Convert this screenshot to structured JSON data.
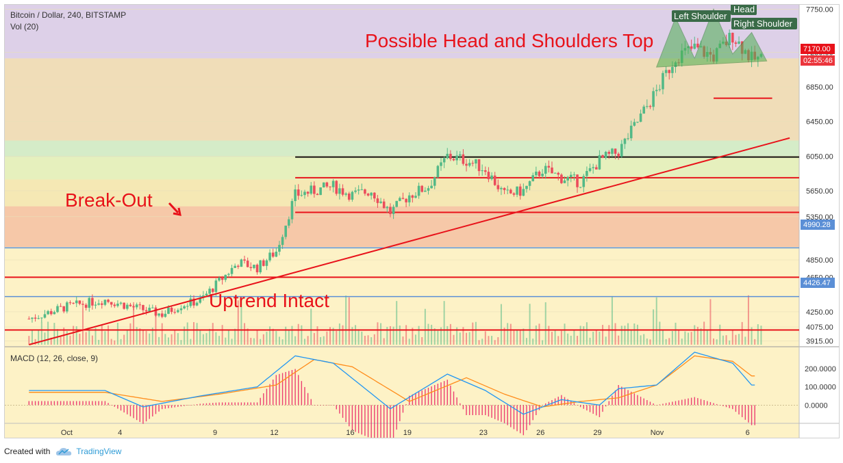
{
  "header": {
    "symbol_line": "Bitcoin / Dollar, 240, BITSTAMP",
    "volume_line": "Vol (20)",
    "macd_line": "MACD (12, 26, close, 9)"
  },
  "footer": {
    "created_with": "Created with",
    "brand": "TradingView",
    "brand_icon": "tradingview-cloud-icon"
  },
  "annotations": {
    "title": "Possible Head and Shoulders Top",
    "breakout": "Break-Out",
    "uptrend": "Uptrend Intact",
    "left_shoulder": "Left Shoulder",
    "head": "Head",
    "right_shoulder": "Right Shoulder"
  },
  "price_tags": {
    "last_price": "7170.00",
    "countdown": "02:55:46",
    "level_upper": "4990.28",
    "level_lower": "4426.47"
  },
  "colors": {
    "up": "#53b987",
    "down": "#eb4d5c",
    "trendline": "#e8121a",
    "resistance_black": "#111111",
    "macd_line": "#2196f3",
    "signal_line": "#ff8c1a",
    "histogram": "#e91e63",
    "pattern_fill": "#4caf50",
    "level_blue": "#5b8fd6"
  },
  "chart_data": {
    "type": "candlestick",
    "symbol": "Bitcoin / Dollar",
    "interval": "240",
    "exchange": "BITSTAMP",
    "price_axis_ticks": [
      "7750.00",
      "7250.00",
      "6850.00",
      "6450.00",
      "6050.00",
      "5650.00",
      "5350.00",
      "4990.28",
      "4850.00",
      "4650.00",
      "4426.47",
      "4250.00",
      "4075.00",
      "3915.00"
    ],
    "price_tick_values": [
      7750,
      7250,
      6850,
      6450,
      6050,
      5650,
      5350,
      4990.28,
      4850,
      4650,
      4426.47,
      4250,
      4075,
      3915
    ],
    "macd_axis_ticks": [
      "200.0000",
      "100.0000",
      "0.0000"
    ],
    "macd_tick_values": [
      200,
      100,
      0
    ],
    "time_axis_ticks": [
      "Oct",
      "4",
      "9",
      "12",
      "16",
      "19",
      "23",
      "26",
      "29",
      "Nov",
      "6"
    ],
    "price_ylim": [
      3870,
      7800
    ],
    "macd_ylim": [
      -100,
      320
    ],
    "last_price": 7170,
    "horizontal_levels": [
      {
        "price": 6040,
        "color": "black"
      },
      {
        "price": 5800,
        "color": "red"
      },
      {
        "price": 5400,
        "color": "red"
      },
      {
        "price": 4990.28,
        "color": "blue"
      },
      {
        "price": 4650,
        "color": "red"
      },
      {
        "price": 4426.47,
        "color": "blue"
      },
      {
        "price": 4040,
        "color": "red"
      },
      {
        "price": 6720,
        "color": "red"
      }
    ],
    "zones": [
      {
        "from": 7180,
        "to": 7800,
        "color": "purple"
      },
      {
        "from": 6230,
        "to": 7180,
        "color": "tan"
      },
      {
        "from": 6040,
        "to": 6230,
        "color": "green"
      },
      {
        "from": 5780,
        "to": 6040,
        "color": "lightgreen"
      },
      {
        "from": 5470,
        "to": 5780,
        "color": "khaki"
      },
      {
        "from": 5000,
        "to": 5470,
        "color": "salmon"
      },
      {
        "from": 3870,
        "to": 5000,
        "color": "cream"
      }
    ],
    "trendline": {
      "start": {
        "date": "2017-09-29",
        "price": 3870
      },
      "end": {
        "date": "2017-11-08",
        "price": 6260
      }
    },
    "close_anchors": [
      {
        "date": "2017-09-29",
        "price": 4170
      },
      {
        "date": "2017-10-01",
        "price": 4310
      },
      {
        "date": "2017-10-03",
        "price": 4390
      },
      {
        "date": "2017-10-04",
        "price": 4330
      },
      {
        "date": "2017-10-06",
        "price": 4220
      },
      {
        "date": "2017-10-07",
        "price": 4330
      },
      {
        "date": "2017-10-08",
        "price": 4380
      },
      {
        "date": "2017-10-09",
        "price": 4600
      },
      {
        "date": "2017-10-10",
        "price": 4820
      },
      {
        "date": "2017-10-11",
        "price": 4760
      },
      {
        "date": "2017-10-12",
        "price": 4950
      },
      {
        "date": "2017-10-13",
        "price": 5600
      },
      {
        "date": "2017-10-14",
        "price": 5650
      },
      {
        "date": "2017-10-15",
        "price": 5700
      },
      {
        "date": "2017-10-16",
        "price": 5600
      },
      {
        "date": "2017-10-17",
        "price": 5650
      },
      {
        "date": "2017-10-18",
        "price": 5400
      },
      {
        "date": "2017-10-19",
        "price": 5600
      },
      {
        "date": "2017-10-20",
        "price": 5700
      },
      {
        "date": "2017-10-21",
        "price": 6050
      },
      {
        "date": "2017-10-22",
        "price": 6000
      },
      {
        "date": "2017-10-23",
        "price": 5900
      },
      {
        "date": "2017-10-24",
        "price": 5600
      },
      {
        "date": "2017-10-25",
        "price": 5650
      },
      {
        "date": "2017-10-26",
        "price": 5900
      },
      {
        "date": "2017-10-27",
        "price": 5800
      },
      {
        "date": "2017-10-28",
        "price": 5750
      },
      {
        "date": "2017-10-29",
        "price": 6000
      },
      {
        "date": "2017-10-30",
        "price": 6100
      },
      {
        "date": "2017-10-31",
        "price": 6450
      },
      {
        "date": "2017-11-01",
        "price": 6800
      },
      {
        "date": "2017-11-02",
        "price": 7200
      },
      {
        "date": "2017-11-03",
        "price": 7300
      },
      {
        "date": "2017-11-04",
        "price": 7200
      },
      {
        "date": "2017-11-05",
        "price": 7450
      },
      {
        "date": "2017-11-06",
        "price": 7170
      }
    ],
    "macd_anchors": [
      {
        "date": "2017-09-29",
        "macd": 80
      },
      {
        "date": "2017-10-03",
        "macd": 80
      },
      {
        "date": "2017-10-05",
        "macd": -10
      },
      {
        "date": "2017-10-08",
        "macd": 50
      },
      {
        "date": "2017-10-11",
        "macd": 100
      },
      {
        "date": "2017-10-13",
        "macd": 270
      },
      {
        "date": "2017-10-15",
        "macd": 230
      },
      {
        "date": "2017-10-18",
        "macd": -20
      },
      {
        "date": "2017-10-21",
        "macd": 170
      },
      {
        "date": "2017-10-23",
        "macd": 80
      },
      {
        "date": "2017-10-25",
        "macd": -50
      },
      {
        "date": "2017-10-27",
        "macd": 30
      },
      {
        "date": "2017-10-29",
        "macd": 0
      },
      {
        "date": "2017-10-30",
        "macd": 90
      },
      {
        "date": "2017-11-01",
        "macd": 110
      },
      {
        "date": "2017-11-03",
        "macd": 290
      },
      {
        "date": "2017-11-05",
        "macd": 230
      },
      {
        "date": "2017-11-06",
        "macd": 110
      }
    ],
    "signal_anchors": [
      {
        "date": "2017-09-29",
        "signal": 70
      },
      {
        "date": "2017-10-03",
        "signal": 70
      },
      {
        "date": "2017-10-06",
        "signal": 20
      },
      {
        "date": "2017-10-09",
        "signal": 60
      },
      {
        "date": "2017-10-12",
        "signal": 110
      },
      {
        "date": "2017-10-14",
        "signal": 250
      },
      {
        "date": "2017-10-16",
        "signal": 210
      },
      {
        "date": "2017-10-19",
        "signal": 20
      },
      {
        "date": "2017-10-22",
        "signal": 150
      },
      {
        "date": "2017-10-24",
        "signal": 60
      },
      {
        "date": "2017-10-26",
        "signal": -10
      },
      {
        "date": "2017-10-28",
        "signal": 20
      },
      {
        "date": "2017-10-30",
        "signal": 40
      },
      {
        "date": "2017-11-01",
        "signal": 110
      },
      {
        "date": "2017-11-03",
        "signal": 270
      },
      {
        "date": "2017-11-05",
        "signal": 240
      },
      {
        "date": "2017-11-06",
        "signal": 160
      }
    ]
  }
}
